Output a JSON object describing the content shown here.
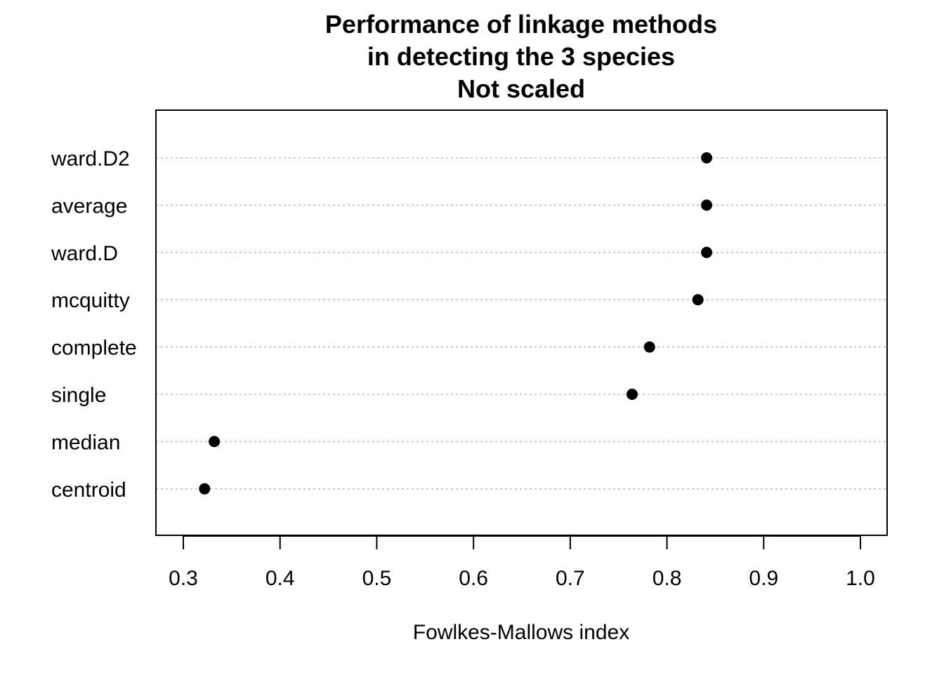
{
  "chart_data": {
    "type": "dotchart",
    "title": [
      "Performance of linkage methods",
      "in detecting the 3 species",
      "Not scaled"
    ],
    "xlabel": "Fowlkes-Mallows index",
    "ylabel": "",
    "xlim": [
      0.3,
      1.0
    ],
    "xticks": [
      "0.3",
      "0.4",
      "0.5",
      "0.6",
      "0.7",
      "0.8",
      "0.9",
      "1.0"
    ],
    "categories": [
      "ward.D2",
      "average",
      "ward.D",
      "mcquitty",
      "complete",
      "single",
      "median",
      "centroid"
    ],
    "values": [
      0.841,
      0.841,
      0.841,
      0.832,
      0.782,
      0.764,
      0.332,
      0.322
    ],
    "grid": "dotted horizontal guide lines per category",
    "colors": {
      "point": "#000000",
      "guide": "#bebebe",
      "frame": "#000000"
    }
  }
}
